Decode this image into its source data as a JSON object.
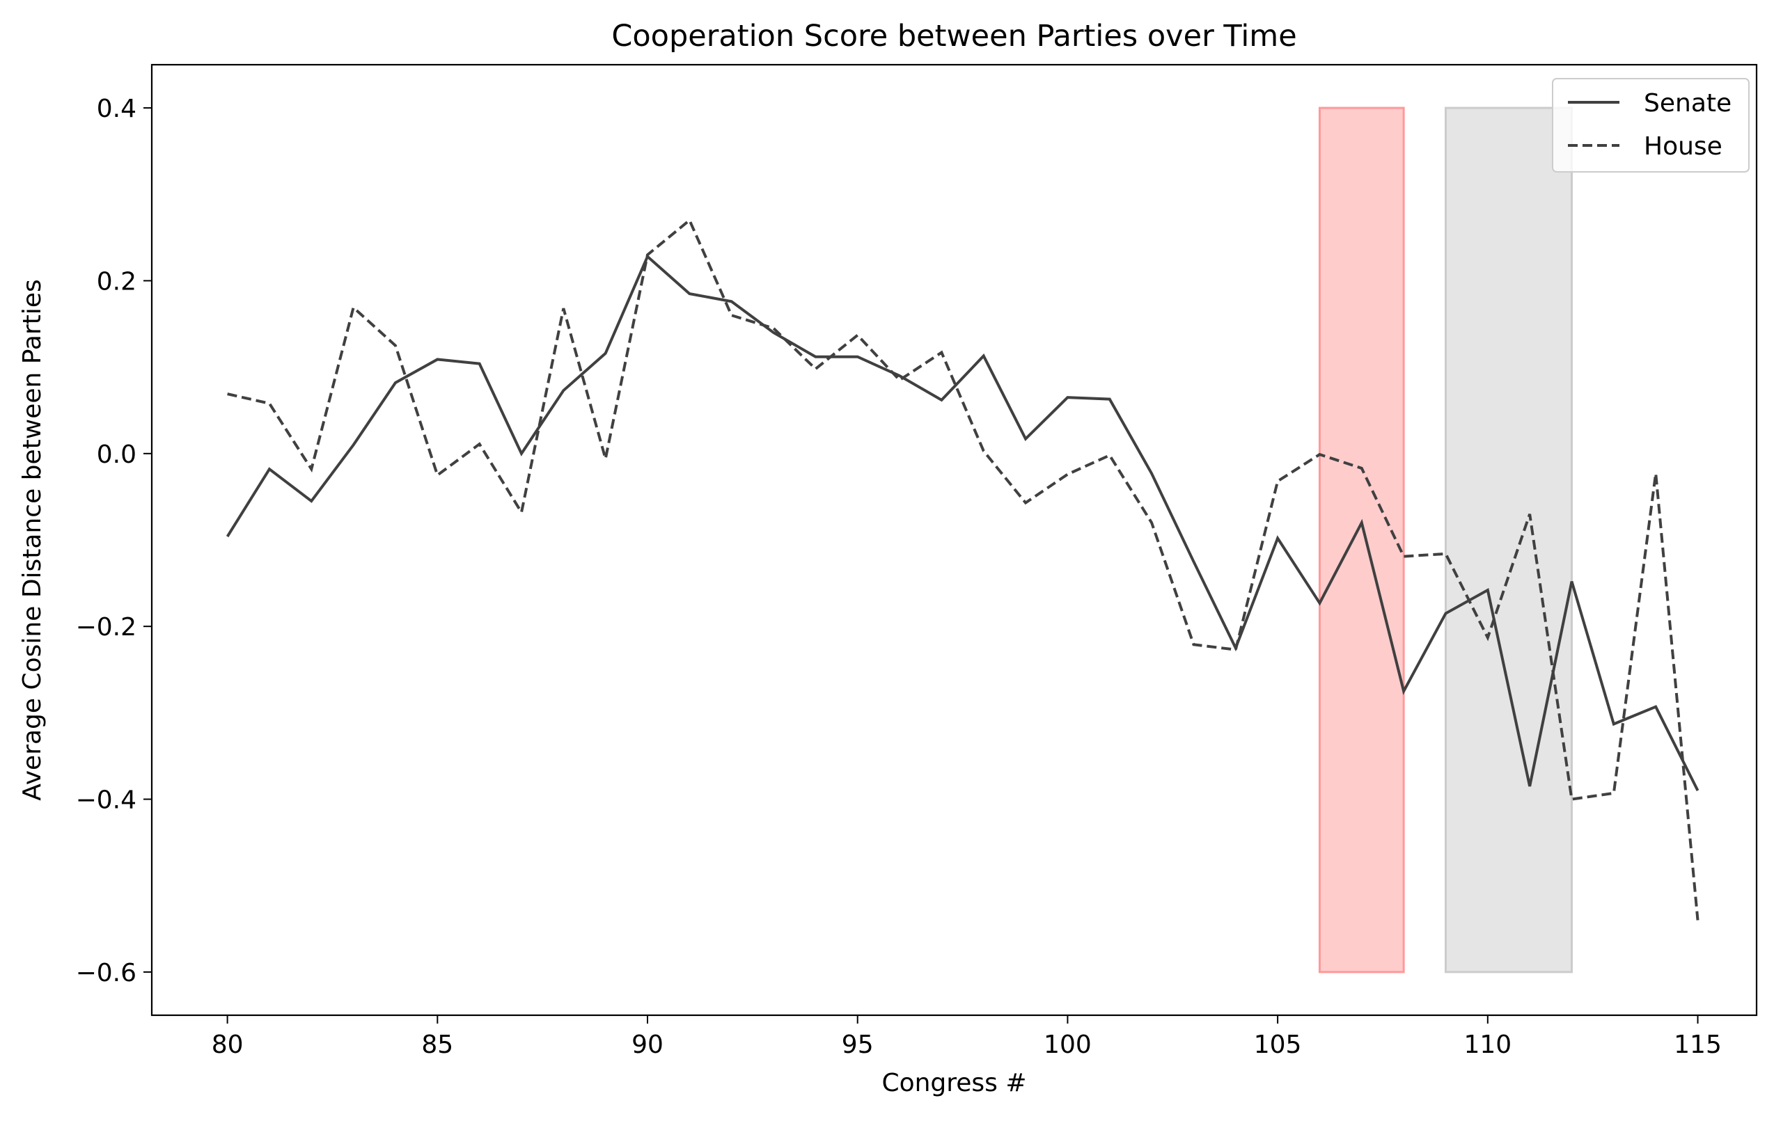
{
  "chart_data": {
    "type": "line",
    "title": "Cooperation Score between Parties over Time",
    "xlabel": "Congress #",
    "ylabel": "Average Cosine Distance between Parties",
    "xlim": [
      78.2,
      116.4
    ],
    "ylim": [
      -0.65,
      0.45
    ],
    "xticks": [
      80,
      85,
      90,
      95,
      100,
      105,
      110,
      115
    ],
    "yticks": [
      0.4,
      0.2,
      0.0,
      -0.2,
      -0.4,
      -0.6
    ],
    "ytick_labels": [
      "0.4",
      "0.2",
      "0.0",
      "−0.2",
      "−0.4",
      "−0.6"
    ],
    "legend_position": "top-right",
    "grid": false,
    "x": [
      80,
      81,
      82,
      83,
      84,
      85,
      86,
      87,
      88,
      89,
      90,
      91,
      92,
      93,
      94,
      95,
      96,
      97,
      98,
      99,
      100,
      101,
      102,
      103,
      104,
      105,
      106,
      107,
      108,
      109,
      110,
      111,
      112,
      113,
      114,
      115
    ],
    "series": [
      {
        "name": "Senate",
        "style": "solid",
        "color": "#404040",
        "values": [
          -0.096,
          -0.018,
          -0.055,
          0.01,
          0.082,
          0.109,
          0.104,
          0.0,
          0.073,
          0.116,
          0.228,
          0.185,
          0.176,
          0.14,
          0.112,
          0.112,
          0.09,
          0.062,
          0.113,
          0.017,
          0.065,
          0.063,
          -0.023,
          -0.125,
          -0.225,
          -0.098,
          -0.173,
          -0.08,
          -0.275,
          -0.185,
          -0.158,
          -0.385,
          -0.148,
          -0.313,
          -0.293,
          -0.39
        ]
      },
      {
        "name": "House",
        "style": "dashed",
        "color": "#404040",
        "values": [
          0.069,
          0.058,
          -0.018,
          0.169,
          0.125,
          -0.025,
          0.011,
          -0.068,
          0.168,
          -0.006,
          0.23,
          0.27,
          0.16,
          0.145,
          0.098,
          0.137,
          0.085,
          0.117,
          0.003,
          -0.057,
          -0.024,
          -0.002,
          -0.08,
          -0.221,
          -0.227,
          -0.032,
          -0.001,
          -0.017,
          -0.119,
          -0.116,
          -0.213,
          -0.07,
          -0.4,
          -0.393,
          -0.023,
          -0.54
        ]
      }
    ],
    "shaded_regions": [
      {
        "x_start": 106,
        "x_end": 108,
        "y_start": -0.6,
        "y_end": 0.4,
        "color": "#ff9999"
      },
      {
        "x_start": 109,
        "x_end": 112,
        "y_start": -0.6,
        "y_end": 0.4,
        "color": "#cccccc"
      }
    ]
  }
}
